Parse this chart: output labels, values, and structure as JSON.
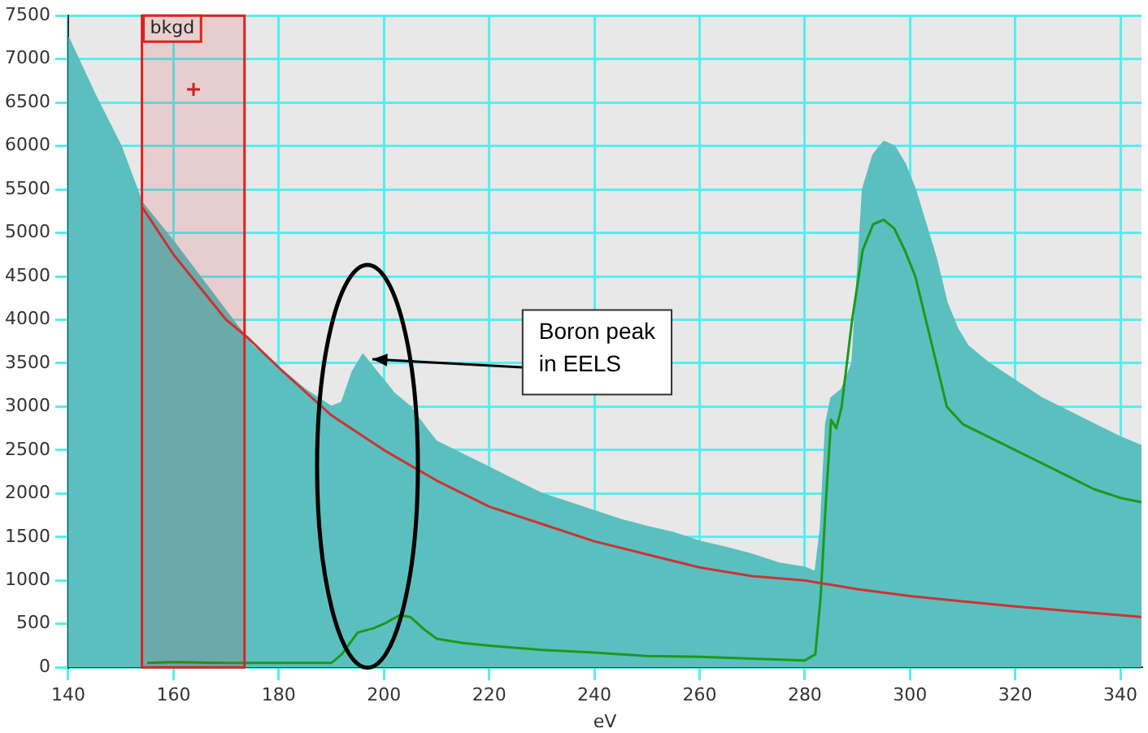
{
  "chart_data": {
    "type": "area",
    "xlabel": "eV",
    "xlim": [
      140,
      344
    ],
    "xticks": [
      140,
      160,
      180,
      200,
      220,
      240,
      260,
      280,
      300,
      320,
      340
    ],
    "ylim": [
      0,
      7500
    ],
    "yticks": [
      0,
      500,
      1000,
      1500,
      2000,
      2500,
      3000,
      3500,
      4000,
      4500,
      5000,
      5500,
      6000,
      6500,
      7000,
      7500
    ],
    "grid": true,
    "legend": false,
    "series": [
      {
        "color": "#5bbfbf",
        "x": [
          140,
          145,
          150,
          154,
          160,
          165,
          170,
          175,
          180,
          185,
          190,
          192,
          194,
          196,
          198,
          200,
          202,
          205,
          208,
          210,
          215,
          220,
          225,
          230,
          235,
          240,
          245,
          250,
          255,
          260,
          265,
          270,
          275,
          280,
          282,
          283,
          284,
          285,
          287,
          289,
          290,
          291,
          293,
          295,
          297,
          299,
          301,
          303,
          305,
          307,
          309,
          311,
          315,
          320,
          325,
          330,
          335,
          340,
          344
        ],
        "values": [
          7250,
          6600,
          6000,
          5350,
          4900,
          4500,
          4100,
          3700,
          3450,
          3200,
          3000,
          3050,
          3400,
          3600,
          3450,
          3300,
          3150,
          3000,
          2750,
          2600,
          2450,
          2300,
          2150,
          2000,
          1900,
          1800,
          1700,
          1620,
          1550,
          1450,
          1380,
          1300,
          1200,
          1150,
          1100,
          1600,
          2800,
          3100,
          3200,
          3500,
          4500,
          5500,
          5900,
          6050,
          6000,
          5800,
          5500,
          5100,
          4700,
          4200,
          3900,
          3700,
          3500,
          3300,
          3100,
          2950,
          2800,
          2650,
          2550
        ]
      },
      {
        "type": "line",
        "color": "#cc3333",
        "x": [
          154,
          160,
          170,
          174,
          180,
          190,
          200,
          210,
          220,
          230,
          240,
          250,
          260,
          270,
          280,
          290,
          300,
          310,
          320,
          330,
          340,
          344
        ],
        "values": [
          5300,
          4750,
          4000,
          3800,
          3450,
          2900,
          2500,
          2150,
          1850,
          1650,
          1450,
          1300,
          1150,
          1050,
          1000,
          900,
          820,
          760,
          700,
          650,
          600,
          580
        ]
      },
      {
        "type": "line",
        "color": "#1a9a1a",
        "x": [
          155,
          160,
          170,
          180,
          190,
          192,
          195,
          198,
          200,
          203,
          205,
          208,
          210,
          215,
          220,
          230,
          240,
          250,
          260,
          270,
          280,
          282,
          283,
          284,
          285,
          286,
          287,
          289,
          291,
          293,
          295,
          297,
          299,
          301,
          303,
          305,
          307,
          310,
          315,
          320,
          325,
          330,
          335,
          340,
          344
        ],
        "values": [
          50,
          60,
          50,
          50,
          50,
          150,
          400,
          450,
          500,
          600,
          580,
          420,
          330,
          280,
          250,
          200,
          170,
          130,
          120,
          100,
          80,
          150,
          800,
          1900,
          2850,
          2750,
          3000,
          4000,
          4800,
          5100,
          5150,
          5050,
          4800,
          4500,
          4000,
          3500,
          3000,
          2800,
          2650,
          2500,
          2350,
          2200,
          2050,
          1950,
          1900
        ]
      }
    ],
    "bands": [
      {
        "axis": "x",
        "from": 154,
        "to": 173.5,
        "label": "bkgd",
        "color": "#e02020"
      }
    ],
    "annotations": [
      {
        "text": "Boron peak\nin EELS",
        "x": 197,
        "y": 3550
      }
    ]
  }
}
